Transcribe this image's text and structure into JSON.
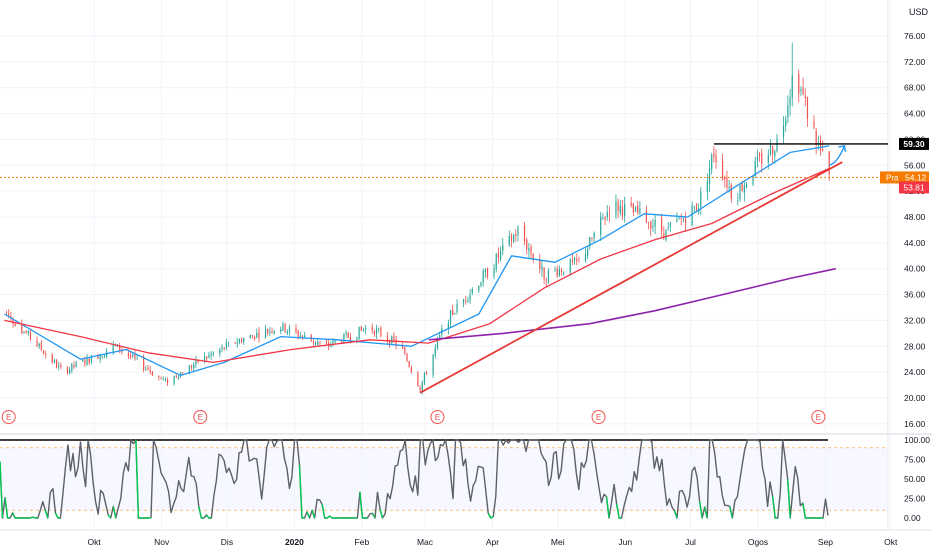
{
  "currency_label": "USD",
  "colors": {
    "up": "#26a69a",
    "down": "#ef5350",
    "ma_fast": "#2196f3",
    "ma_mid": "#f23645",
    "ma_slow": "#8e24aa",
    "trendline": "#e53935",
    "resistance": "#000000",
    "arrow": "#2196f3",
    "oscillator": "#5d6167",
    "oscillator_overshoot": "#00c853",
    "earnings": "#ef5350",
    "price_label_bg": "#f57c00",
    "close_label_bg": "#f23645"
  },
  "chart_data": [
    {
      "type": "candlestick",
      "title": "",
      "x_labels": [
        "Okt",
        "Nov",
        "Dis",
        "2020",
        "Feb",
        "Mac",
        "Apr",
        "Mei",
        "Jun",
        "Jul",
        "Ogos",
        "Sep",
        "Okt"
      ],
      "y_ticks": [
        "76.00",
        "72.00",
        "68.00",
        "64.00",
        "60.00",
        "56.00",
        "52.00",
        "48.00",
        "44.00",
        "40.00",
        "36.00",
        "32.00",
        "28.00",
        "24.00",
        "20.00",
        "16.00"
      ],
      "ylim": [
        16,
        78
      ],
      "price_anchors": [
        {
          "date": "2019-09-15",
          "price": 33.5
        },
        {
          "date": "2019-10-12",
          "price": 24.0
        },
        {
          "date": "2019-11-05",
          "price": 28.0
        },
        {
          "date": "2019-11-28",
          "price": 22.5
        },
        {
          "date": "2019-12-15",
          "price": 26.0
        },
        {
          "date": "2020-01-01",
          "price": 29.0
        },
        {
          "date": "2020-01-20",
          "price": 31.0
        },
        {
          "date": "2020-02-10",
          "price": 28.0
        },
        {
          "date": "2020-03-01",
          "price": 31.0
        },
        {
          "date": "2020-03-15",
          "price": 28.0
        },
        {
          "date": "2020-03-24",
          "price": 21.5
        },
        {
          "date": "2020-04-05",
          "price": 32.0
        },
        {
          "date": "2020-04-25",
          "price": 40.0
        },
        {
          "date": "2020-05-08",
          "price": 46.0
        },
        {
          "date": "2020-05-20",
          "price": 39.0
        },
        {
          "date": "2020-06-05",
          "price": 41.0
        },
        {
          "date": "2020-06-20",
          "price": 50.0
        },
        {
          "date": "2020-07-05",
          "price": 48.0
        },
        {
          "date": "2020-07-15",
          "price": 45.5
        },
        {
          "date": "2020-07-30",
          "price": 50.0
        },
        {
          "date": "2020-08-06",
          "price": 58.0
        },
        {
          "date": "2020-08-15",
          "price": 51.0
        },
        {
          "date": "2020-08-28",
          "price": 57.0
        },
        {
          "date": "2020-09-05",
          "price": 60.0
        },
        {
          "date": "2020-09-12",
          "price": 71.0
        },
        {
          "date": "2020-09-20",
          "price": 62.0
        },
        {
          "date": "2020-09-28",
          "price": 54.12
        }
      ],
      "moving_averages": [
        {
          "color_key": "ma_fast",
          "points": [
            {
              "date": "2019-09-15",
              "price": 33.0
            },
            {
              "date": "2019-10-20",
              "price": 26.0
            },
            {
              "date": "2019-11-10",
              "price": 27.5
            },
            {
              "date": "2019-12-05",
              "price": 23.5
            },
            {
              "date": "2019-12-25",
              "price": 25.5
            },
            {
              "date": "2020-01-20",
              "price": 29.5
            },
            {
              "date": "2020-02-15",
              "price": 29.0
            },
            {
              "date": "2020-03-20",
              "price": 28.0
            },
            {
              "date": "2020-04-20",
              "price": 33.0
            },
            {
              "date": "2020-05-05",
              "price": 42.0
            },
            {
              "date": "2020-05-25",
              "price": 41.0
            },
            {
              "date": "2020-06-15",
              "price": 44.5
            },
            {
              "date": "2020-07-05",
              "price": 48.5
            },
            {
              "date": "2020-07-25",
              "price": 48.0
            },
            {
              "date": "2020-08-15",
              "price": 52.5
            },
            {
              "date": "2020-09-10",
              "price": 58.0
            },
            {
              "date": "2020-09-28",
              "price": 59.0
            }
          ]
        },
        {
          "color_key": "ma_mid",
          "points": [
            {
              "date": "2019-09-15",
              "price": 32.0
            },
            {
              "date": "2019-10-20",
              "price": 29.5
            },
            {
              "date": "2019-11-20",
              "price": 27.0
            },
            {
              "date": "2019-12-20",
              "price": 25.5
            },
            {
              "date": "2020-01-25",
              "price": 27.5
            },
            {
              "date": "2020-03-01",
              "price": 29.0
            },
            {
              "date": "2020-03-28",
              "price": 28.5
            },
            {
              "date": "2020-04-25",
              "price": 31.5
            },
            {
              "date": "2020-05-20",
              "price": 37.0
            },
            {
              "date": "2020-06-15",
              "price": 41.5
            },
            {
              "date": "2020-07-10",
              "price": 44.5
            },
            {
              "date": "2020-08-05",
              "price": 47.0
            },
            {
              "date": "2020-09-01",
              "price": 51.5
            },
            {
              "date": "2020-09-28",
              "price": 55.5
            }
          ]
        },
        {
          "color_key": "ma_slow",
          "points": [
            {
              "date": "2020-03-28",
              "price": 29.0
            },
            {
              "date": "2020-05-01",
              "price": 30.0
            },
            {
              "date": "2020-06-10",
              "price": 31.5
            },
            {
              "date": "2020-07-10",
              "price": 33.5
            },
            {
              "date": "2020-08-10",
              "price": 36.0
            },
            {
              "date": "2020-09-10",
              "price": 38.5
            },
            {
              "date": "2020-10-01",
              "price": 40.0
            }
          ]
        }
      ],
      "trendline": [
        {
          "date": "2020-03-24",
          "price": 20.8
        },
        {
          "date": "2020-10-04",
          "price": 56.5
        }
      ],
      "resistance_line": {
        "price": 59.3,
        "from": "2020-08-06",
        "to": "2020-10-15"
      },
      "projection_arrow": [
        {
          "date": "2020-09-28",
          "price": 56.0
        },
        {
          "date": "2020-10-05",
          "price": 59.0
        }
      ],
      "price_line": 54.12,
      "axis_labels": [
        {
          "label": "59.30",
          "price": 59.3,
          "style": "resistance"
        },
        {
          "label": "Pra",
          "value": "54.12",
          "price": 54.12,
          "style": "pre"
        },
        {
          "label": "53.81",
          "price": 53.81,
          "style": "close"
        }
      ],
      "earnings_markers": [
        {
          "date": "2019-09-17",
          "label": "E"
        },
        {
          "date": "2019-12-14",
          "label": "E"
        },
        {
          "date": "2020-04-01",
          "label": "E"
        },
        {
          "date": "2020-06-14",
          "label": "E"
        },
        {
          "date": "2020-09-23",
          "label": "E"
        }
      ]
    },
    {
      "type": "line",
      "title": "",
      "y_ticks": [
        "100.00",
        "75.00",
        "50.00",
        "25.00",
        "0.00"
      ],
      "ylim": [
        -3,
        103
      ],
      "upper_band": 90,
      "lower_band": 10,
      "max_line": 100,
      "seed": 7
    }
  ]
}
